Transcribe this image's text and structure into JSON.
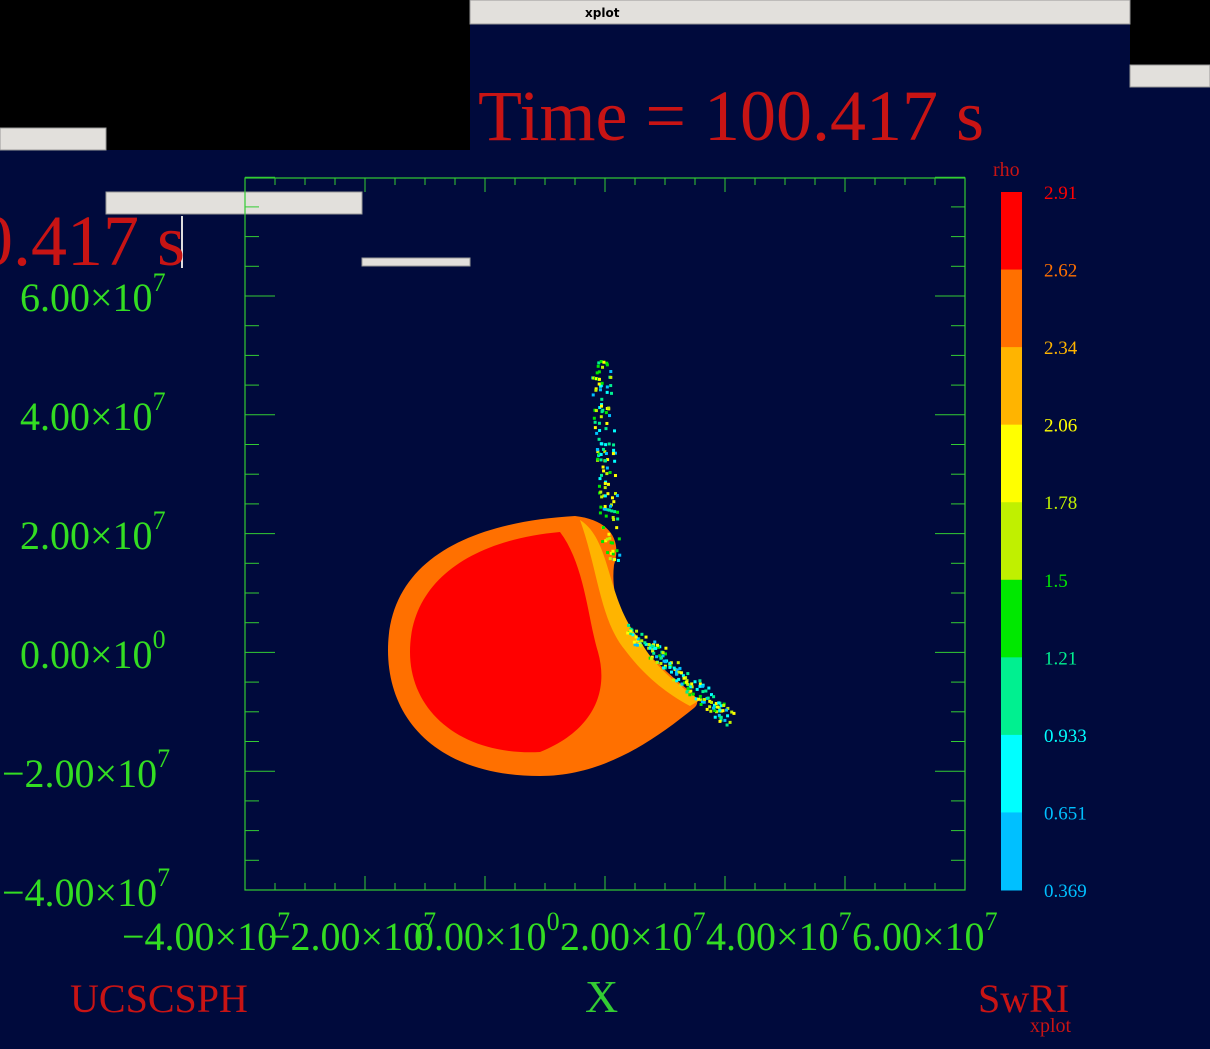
{
  "windows": [
    {
      "title": "xplot"
    }
  ],
  "plot": {
    "title": "Time = 100.417 s",
    "colorbar": {
      "label": "rho",
      "ticks": [
        "2.91",
        "2.62",
        "2.34",
        "2.06",
        "1.78",
        "1.5",
        "1.21",
        "0.933",
        "0.651",
        "0.369"
      ],
      "colors": [
        "#ff0000",
        "#ff7000",
        "#ffb400",
        "#ffff00",
        "#c0f000",
        "#00e800",
        "#00f090",
        "#00ffff",
        "#00c0ff"
      ]
    },
    "y_ticks": [
      {
        "text": "6.00×10",
        "exp": "7"
      },
      {
        "text": "4.00×10",
        "exp": "7"
      },
      {
        "text": "2.00×10",
        "exp": "7"
      },
      {
        "text": "0.00×10",
        "exp": "0"
      },
      {
        "text": "−2.00×10",
        "exp": "7"
      },
      {
        "text": "−4.00×10",
        "exp": "7"
      }
    ],
    "x_ticks": [
      {
        "text": "−4.00×10",
        "exp": "7"
      },
      {
        "text": "−2.00×10",
        "exp": "7"
      },
      {
        "text": "0.00×10",
        "exp": "0"
      },
      {
        "text": "2.00×10",
        "exp": "7"
      },
      {
        "text": "4.00×10",
        "exp": "7"
      },
      {
        "text": "6.00×10",
        "exp": "7"
      }
    ],
    "x_label": "X",
    "left_footer": "UCSCSPH",
    "right_footer": "SwRI",
    "footer_small": "xplot"
  }
}
